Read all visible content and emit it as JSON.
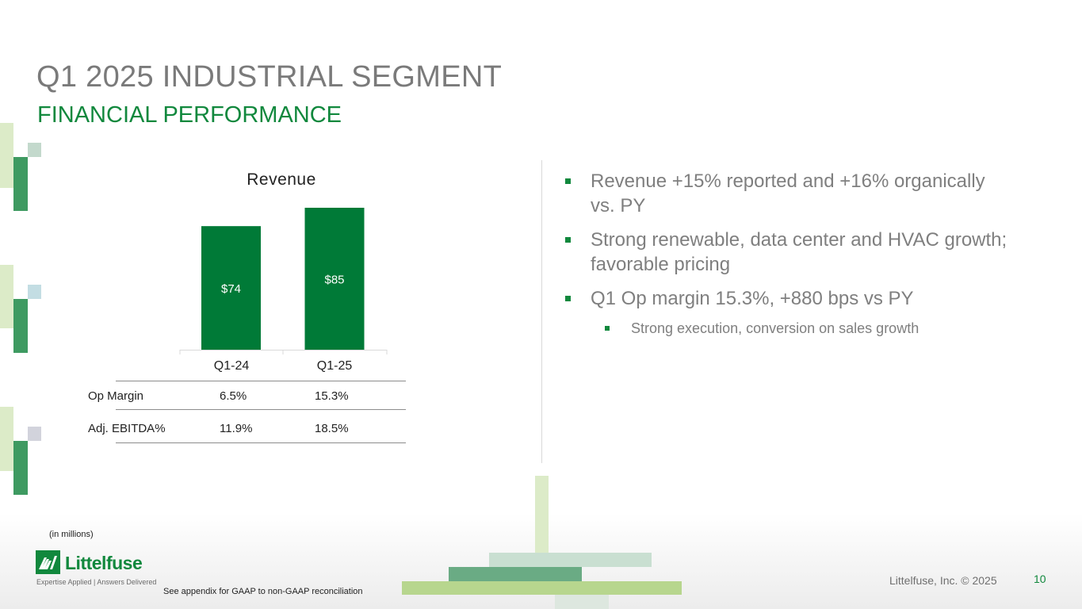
{
  "header": {
    "title": "Q1 2025 INDUSTRIAL SEGMENT",
    "subtitle": "FINANCIAL PERFORMANCE"
  },
  "chart_data": {
    "type": "bar",
    "title": "Revenue",
    "categories": [
      "Q1-24",
      "Q1-25"
    ],
    "values": [
      74,
      85
    ],
    "data_labels": [
      "$74",
      "$85"
    ],
    "bar_color": "#007a37",
    "ylim": [
      0,
      85
    ]
  },
  "metrics_table": {
    "rows": [
      {
        "label": "Op Margin",
        "values": [
          "6.5%",
          "15.3%"
        ]
      },
      {
        "label": "Adj. EBITDA%",
        "values": [
          "11.9%",
          "18.5%"
        ]
      }
    ]
  },
  "bullets": {
    "items": [
      "Revenue +15% reported and +16% organically vs. PY",
      "Strong renewable, data center and HVAC growth; favorable pricing",
      "Q1 Op margin 15.3%, +880 bps vs PY"
    ],
    "sub_item": "Strong execution, conversion on sales growth"
  },
  "footer": {
    "units_note": "(in millions)",
    "logo_text": "Littelfuse",
    "logo_tagline": "Expertise Applied | Answers Delivered",
    "gaap_note": "See appendix for GAAP to non-GAAP reconciliation",
    "copyright": "Littelfuse, Inc. © 2025",
    "page_number": "10"
  },
  "colors": {
    "brand_green": "#11883d",
    "title_gray": "#7a7a7a"
  }
}
